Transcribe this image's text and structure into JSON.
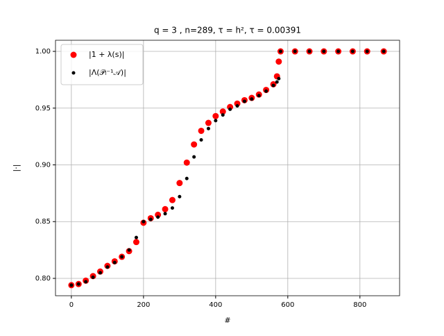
{
  "chart_data": {
    "type": "scatter",
    "title": "q = 3 , n=289, τ = h², τ = 0.00391",
    "xlabel": "#",
    "ylabel": "|·|",
    "x": [
      0,
      20,
      40,
      60,
      80,
      100,
      120,
      140,
      160,
      180,
      200,
      220,
      240,
      260,
      280,
      300,
      320,
      340,
      360,
      380,
      400,
      420,
      440,
      460,
      480,
      500,
      520,
      540,
      560,
      570,
      575,
      580,
      620,
      660,
      700,
      740,
      780,
      820,
      866
    ],
    "series": [
      {
        "name": "|1 + λ(s)|",
        "color": "#ff0000",
        "values": [
          0.794,
          0.795,
          0.798,
          0.802,
          0.806,
          0.811,
          0.815,
          0.819,
          0.824,
          0.832,
          0.849,
          0.853,
          0.856,
          0.861,
          0.869,
          0.884,
          0.902,
          0.918,
          0.93,
          0.937,
          0.943,
          0.947,
          0.951,
          0.954,
          0.957,
          0.959,
          0.962,
          0.966,
          0.971,
          0.978,
          0.991,
          1.0,
          1.0,
          1.0,
          1.0,
          1.0,
          1.0,
          1.0,
          1.0
        ]
      },
      {
        "name": "|Λ(𝒫ₗ⁻¹𝒜)|",
        "color": "#000000",
        "values": [
          0.794,
          0.795,
          0.797,
          0.801,
          0.805,
          0.81,
          0.814,
          0.819,
          0.825,
          0.836,
          0.85,
          0.852,
          0.854,
          0.857,
          0.862,
          0.872,
          0.888,
          0.907,
          0.922,
          0.932,
          0.939,
          0.944,
          0.949,
          0.952,
          0.956,
          0.958,
          0.961,
          0.965,
          0.97,
          0.973,
          0.976,
          1.0,
          1.0,
          1.0,
          1.0,
          1.0,
          1.0,
          1.0,
          1.0
        ]
      }
    ],
    "xlim": [
      -44,
      910
    ],
    "ylim": [
      0.7847,
      1.0098
    ],
    "xticks": [
      0,
      200,
      400,
      600,
      800
    ],
    "yticks": [
      {
        "value": 0.8,
        "label": "0.80"
      },
      0.85,
      {
        "value": 0.9,
        "label": "0.90"
      },
      0.95,
      {
        "value": 1.0,
        "label": "1.00"
      }
    ],
    "grid": true,
    "legend": "upper left"
  }
}
